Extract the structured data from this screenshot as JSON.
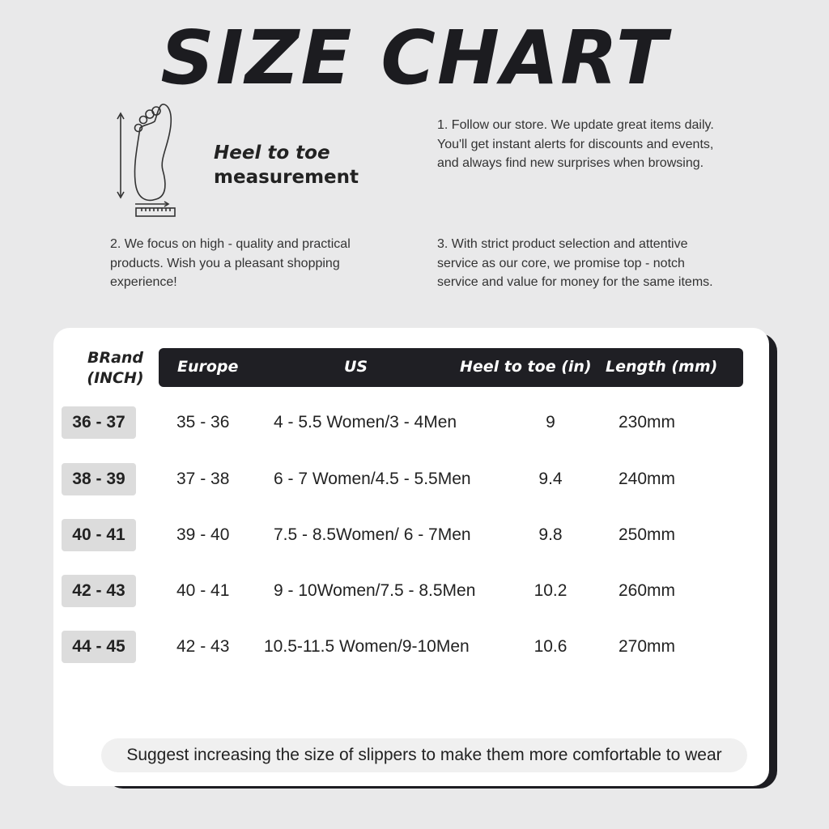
{
  "title": "SIZE CHART",
  "measurement": {
    "line1_italic": "Heel",
    "line1_rest": " to toe",
    "line2": "measurement",
    "icon": "foot-ruler-icon"
  },
  "notes": [
    "1. Follow our store. We update great items daily. You'll get instant alerts for discounts and events, and always find new surprises when browsing.",
    "2. We focus on high - quality and practical products. Wish you a pleasant shopping experience!",
    "3. With strict product selection and attentive service as our core, we promise top - notch service and value for money for the same items."
  ],
  "table": {
    "brand_header_line1": "BRand",
    "brand_header_line2": "(INCH)",
    "headers": [
      "Europe",
      "US",
      "Heel to toe (in)",
      "Length (mm)"
    ],
    "rows": [
      {
        "brand": "36 - 37",
        "europe": "35 - 36",
        "us": "4 - 5.5 Women/3 - 4Men",
        "heel_to_toe": "9",
        "length": "230mm"
      },
      {
        "brand": "38 - 39",
        "europe": "37 - 38",
        "us": "6 - 7 Women/4.5 - 5.5Men",
        "heel_to_toe": "9.4",
        "length": "240mm"
      },
      {
        "brand": "40 - 41",
        "europe": "39 - 40",
        "us": "7.5 - 8.5Women/ 6 - 7Men",
        "heel_to_toe": "9.8",
        "length": "250mm"
      },
      {
        "brand": "42 - 43",
        "europe": "40 - 41",
        "us": "9 - 10Women/7.5 - 8.5Men",
        "heel_to_toe": "10.2",
        "length": "260mm"
      },
      {
        "brand": "44 - 45",
        "europe": "42 - 43",
        "us": "10.5-11.5 Women/9-10Men",
        "heel_to_toe": "10.6",
        "length": "270mm"
      }
    ]
  },
  "tip": "Suggest increasing the size of slippers to make them more comfortable to wear"
}
